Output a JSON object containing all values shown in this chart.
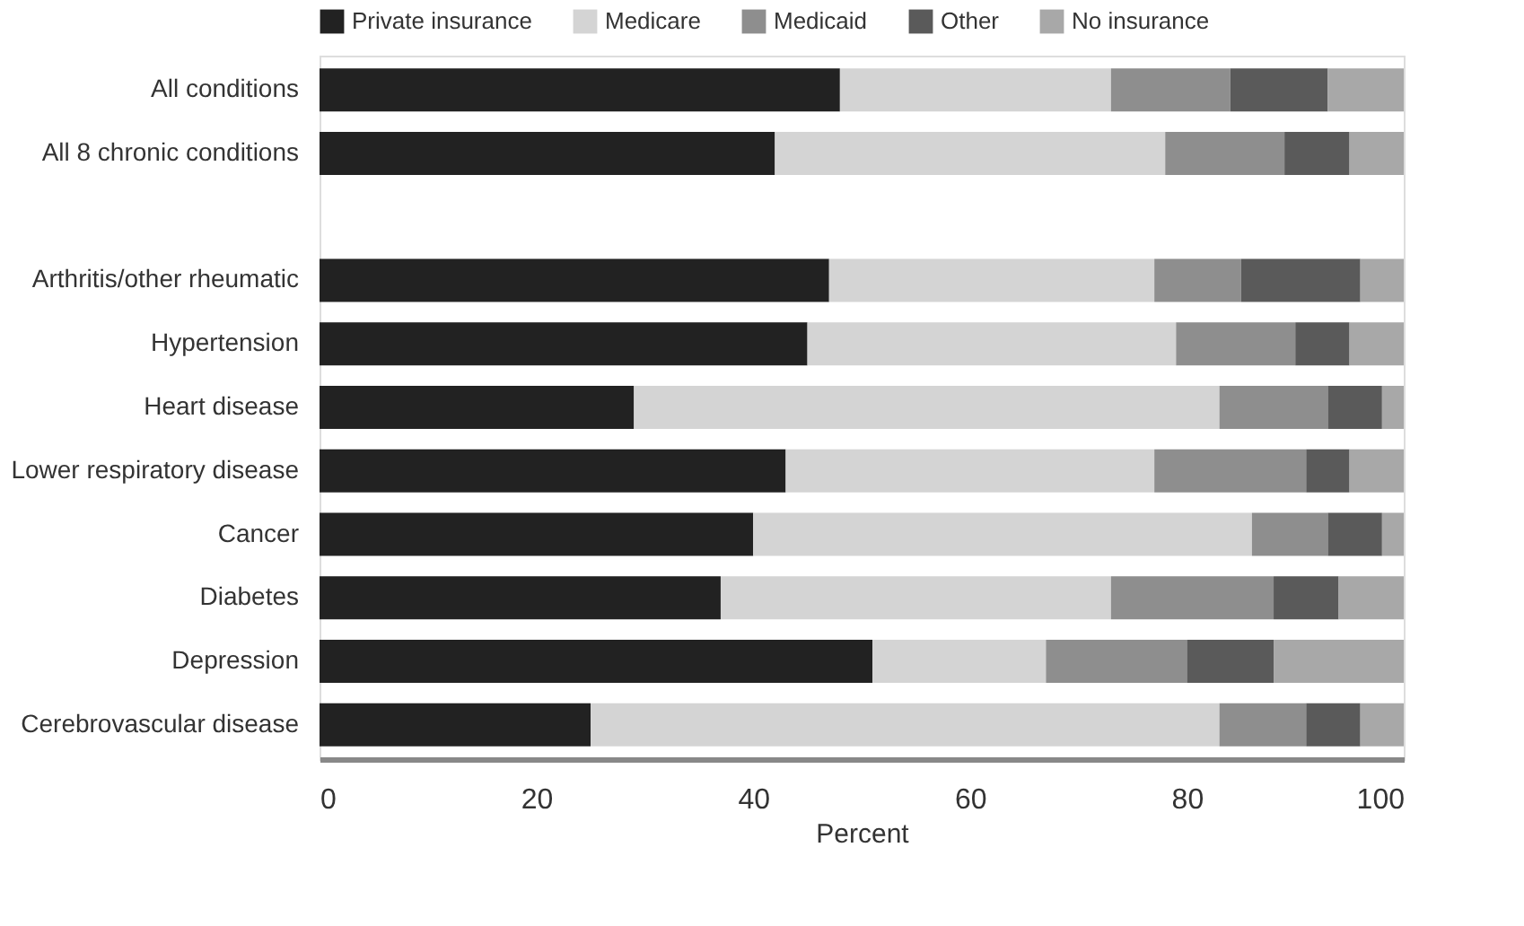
{
  "chart_data": {
    "type": "bar",
    "orientation": "horizontal",
    "stacked": true,
    "categories": [
      "All conditions",
      "All 8 chronic conditions",
      null,
      "Arthritis/other rheumatic",
      "Hypertension",
      "Heart disease",
      "Lower respiratory disease",
      "Cancer",
      "Diabetes",
      "Depression",
      "Cerebrovascular disease"
    ],
    "series": [
      {
        "name": "Private insurance",
        "color": "#222222",
        "values": [
          48,
          42,
          null,
          47,
          45,
          29,
          43,
          40,
          37,
          51,
          25
        ]
      },
      {
        "name": "Medicare",
        "color": "#d4d4d4",
        "values": [
          25,
          36,
          null,
          30,
          34,
          54,
          34,
          46,
          36,
          16,
          58
        ]
      },
      {
        "name": "Medicaid",
        "color": "#8e8e8e",
        "values": [
          11,
          11,
          null,
          8,
          11,
          10,
          14,
          7,
          15,
          13,
          8
        ]
      },
      {
        "name": "Other",
        "color": "#5a5a5a",
        "values": [
          9,
          6,
          null,
          11,
          5,
          5,
          4,
          5,
          6,
          8,
          5
        ]
      },
      {
        "name": "No insurance",
        "color": "#a8a8a8",
        "values": [
          7,
          5,
          null,
          4,
          5,
          2,
          5,
          2,
          6,
          12,
          4
        ]
      }
    ],
    "xlabel": "Percent",
    "xlim": [
      0,
      100
    ],
    "xticks": [
      0,
      20,
      40,
      60,
      80,
      100
    ],
    "grid": false,
    "legend": "top"
  }
}
